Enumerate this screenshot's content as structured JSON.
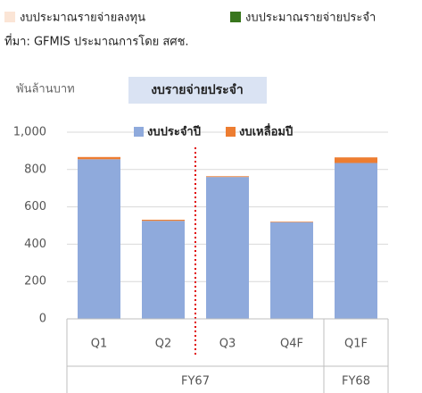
{
  "top_legend": [
    {
      "name": "งบประมาณรายจ่ายลงทุน",
      "color": "#fbe5d6"
    },
    {
      "name": "งบประมาณรายจ่ายประจำ",
      "color": "#38761d"
    }
  ],
  "source": "ที่มา: GFMIS ประมาณการโดย สศช.",
  "chart_data": {
    "type": "bar",
    "stacked": true,
    "title": "งบรายจ่ายประจำ",
    "ylabel": "พันล้านบาท",
    "categories": [
      "Q1",
      "Q2",
      "Q3",
      "Q4F",
      "Q1F"
    ],
    "groups": [
      {
        "label": "FY67",
        "span": 4
      },
      {
        "label": "FY68",
        "span": 1
      }
    ],
    "series": [
      {
        "name": "งบประจำปี",
        "color": "#8faadc",
        "values": [
          855,
          525,
          760,
          518,
          835
        ]
      },
      {
        "name": "งบเหลื่อมปี",
        "color": "#ed7d31",
        "values": [
          12,
          6,
          4,
          3,
          30
        ]
      }
    ],
    "ylim": [
      0,
      1000
    ],
    "yticks": [
      0,
      200,
      400,
      600,
      800,
      {
        "value": 1000,
        "label": "1,000"
      }
    ],
    "grid": true
  }
}
